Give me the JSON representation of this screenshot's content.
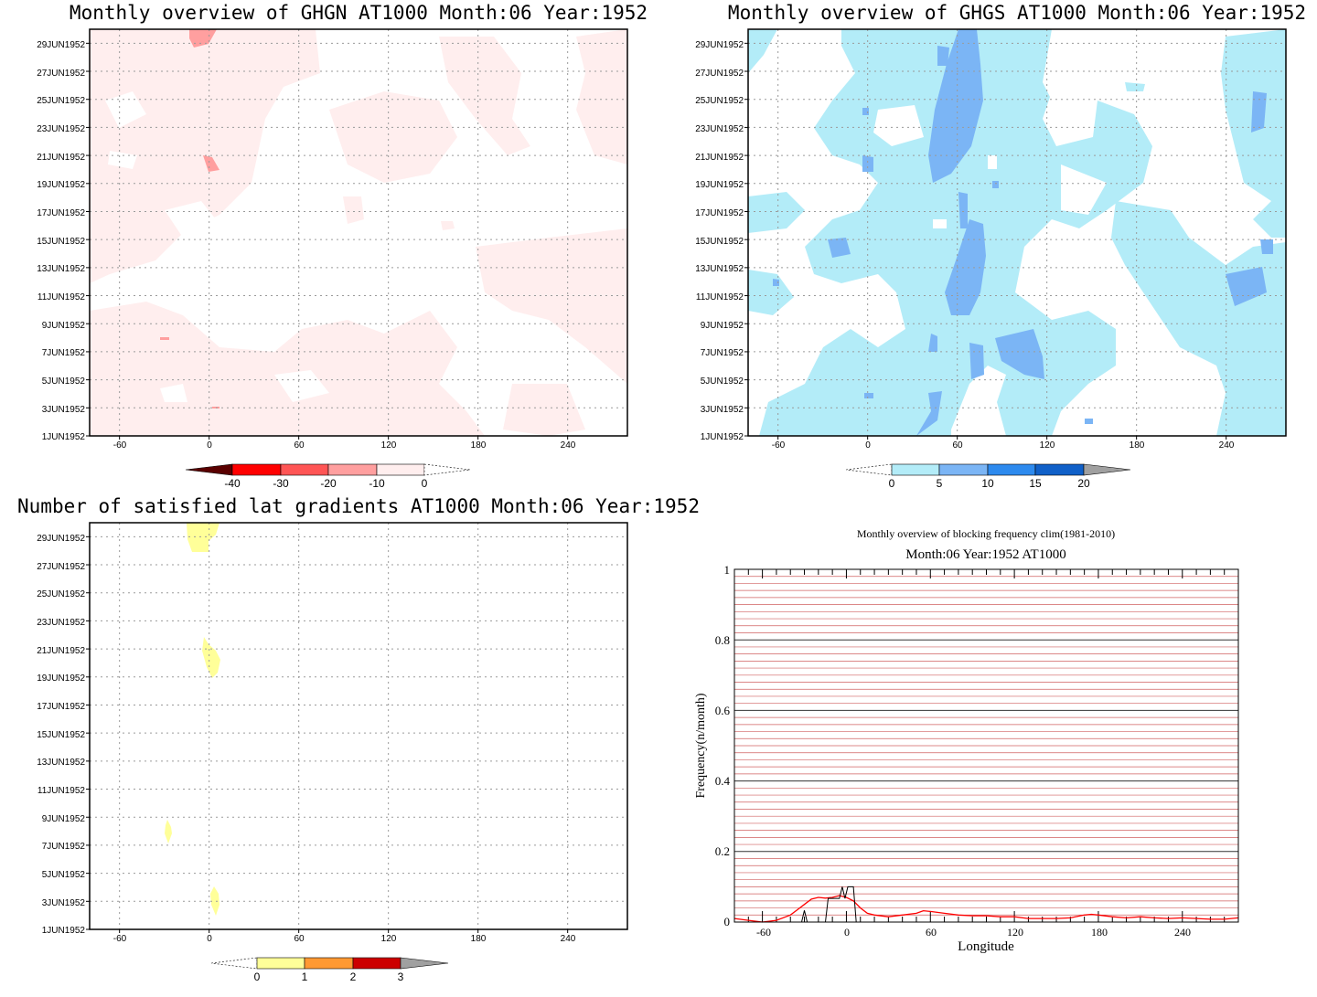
{
  "chart_data": [
    {
      "type": "heatmap",
      "title": "Monthly overview of GHGN AT1000 Month:06 Year:1952",
      "xlabel": "",
      "ylabel": "",
      "x_ticks": [
        "-60",
        "0",
        "60",
        "120",
        "180",
        "240"
      ],
      "y_ticks": [
        "1JUN1952",
        "3JUN1952",
        "5JUN1952",
        "7JUN1952",
        "9JUN1952",
        "11JUN1952",
        "13JUN1952",
        "15JUN1952",
        "17JUN1952",
        "19JUN1952",
        "21JUN1952",
        "23JUN1952",
        "25JUN1952",
        "27JUN1952",
        "29JUN1952"
      ],
      "xlim": [
        -80,
        280
      ],
      "ylim": [
        1,
        30
      ],
      "colorbar": {
        "labels": [
          "-40",
          "-30",
          "-20",
          "-10",
          "0"
        ],
        "colors": [
          "#5a0000",
          "#ff0000",
          "#ff5555",
          "#ff9f9f",
          "#ffeeee"
        ]
      },
      "grid": true
    },
    {
      "type": "heatmap",
      "title": "Monthly overview of GHGS AT1000 Month:06 Year:1952",
      "xlabel": "",
      "ylabel": "",
      "x_ticks": [
        "-60",
        "0",
        "60",
        "120",
        "180",
        "240"
      ],
      "y_ticks": [
        "1JUN1952",
        "3JUN1952",
        "5JUN1952",
        "7JUN1952",
        "9JUN1952",
        "11JUN1952",
        "13JUN1952",
        "15JUN1952",
        "17JUN1952",
        "19JUN1952",
        "21JUN1952",
        "23JUN1952",
        "25JUN1952",
        "27JUN1952",
        "29JUN1952"
      ],
      "xlim": [
        -80,
        280
      ],
      "ylim": [
        1,
        30
      ],
      "colorbar": {
        "labels": [
          "0",
          "5",
          "10",
          "15",
          "20"
        ],
        "colors": [
          "#b3ecf8",
          "#7bb5f5",
          "#2d8aee",
          "#1060c8",
          "#a0a0a0"
        ]
      },
      "grid": true
    },
    {
      "type": "heatmap",
      "title": "Number of satisfied lat gradients AT1000 Month:06 Year:1952",
      "xlabel": "",
      "ylabel": "",
      "x_ticks": [
        "-60",
        "0",
        "60",
        "120",
        "180",
        "240"
      ],
      "y_ticks": [
        "1JUN1952",
        "3JUN1952",
        "5JUN1952",
        "7JUN1952",
        "9JUN1952",
        "11JUN1952",
        "13JUN1952",
        "15JUN1952",
        "17JUN1952",
        "19JUN1952",
        "21JUN1952",
        "23JUN1952",
        "25JUN1952",
        "27JUN1952",
        "29JUN1952"
      ],
      "xlim": [
        -80,
        280
      ],
      "ylim": [
        1,
        30
      ],
      "colorbar": {
        "labels": [
          "0",
          "1",
          "2",
          "3"
        ],
        "colors": [
          "#ffff99",
          "#ff9933",
          "#cc0000",
          "#a0a0a0"
        ]
      },
      "grid": true
    },
    {
      "type": "line",
      "title": "Monthly overview of blocking frequency clim(1981-2010)",
      "subtitle": "Month:06 Year:1952  AT1000",
      "xlabel": "Longitude",
      "ylabel": "Frequency(n/month)",
      "xlim": [
        -80,
        280
      ],
      "ylim": [
        0,
        1
      ],
      "x_ticks": [
        "-60",
        "0",
        "60",
        "120",
        "180",
        "240"
      ],
      "y_ticks": [
        "0",
        "0.2",
        "0.4",
        "0.6",
        "0.8",
        "1"
      ],
      "grid": true,
      "series": [
        {
          "color": "#ff0000",
          "x": [
            -80,
            -70,
            -60,
            -50,
            -40,
            -35,
            -30,
            -25,
            -20,
            -15,
            -10,
            -5,
            0,
            5,
            10,
            15,
            20,
            30,
            40,
            50,
            55,
            60,
            70,
            80,
            90,
            100,
            110,
            120,
            130,
            140,
            150,
            160,
            170,
            175,
            180,
            190,
            200,
            210,
            220,
            230,
            240,
            250,
            260,
            270,
            280
          ],
          "y": [
            0.01,
            0.005,
            0.0,
            0.005,
            0.02,
            0.035,
            0.05,
            0.065,
            0.07,
            0.068,
            0.07,
            0.075,
            0.07,
            0.06,
            0.04,
            0.025,
            0.02,
            0.015,
            0.02,
            0.025,
            0.032,
            0.03,
            0.025,
            0.02,
            0.018,
            0.018,
            0.015,
            0.015,
            0.01,
            0.01,
            0.01,
            0.012,
            0.02,
            0.022,
            0.02,
            0.015,
            0.012,
            0.015,
            0.012,
            0.01,
            0.012,
            0.01,
            0.008,
            0.008,
            0.012
          ]
        },
        {
          "color": "#000000",
          "x": [
            -80,
            -32,
            -30,
            -28,
            -15,
            -13,
            -5,
            -3,
            -1,
            1,
            3,
            5,
            7,
            80,
            180,
            280
          ],
          "y": [
            0,
            0,
            0.033,
            0,
            0,
            0.067,
            0.067,
            0.1,
            0.067,
            0.1,
            0.1,
            0.1,
            0,
            0,
            0,
            0
          ]
        }
      ]
    }
  ]
}
